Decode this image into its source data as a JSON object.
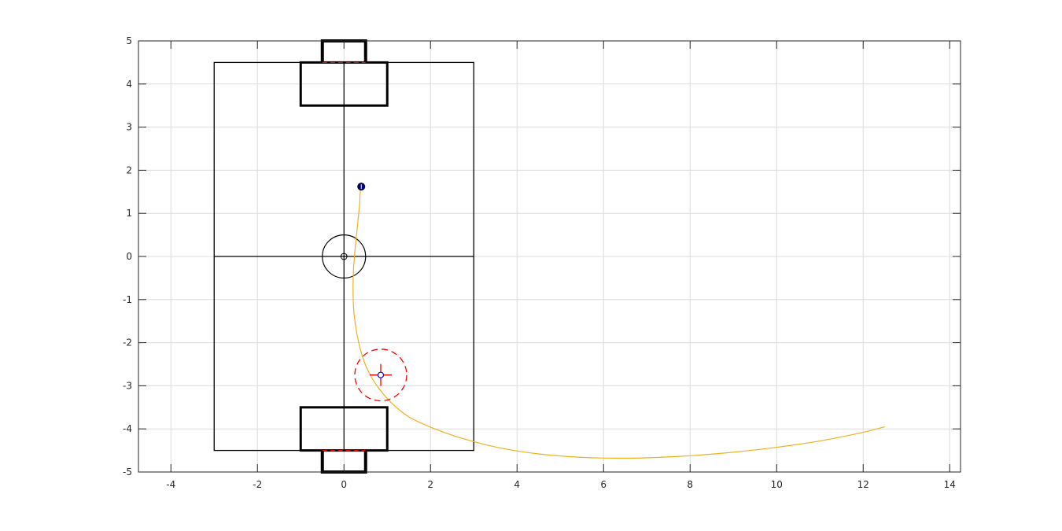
{
  "chart_data": {
    "type": "line",
    "title": "",
    "xlabel": "",
    "ylabel": "",
    "xlim": [
      -4.75,
      14.25
    ],
    "ylim": [
      -5,
      5
    ],
    "xticks": [
      -4,
      -2,
      0,
      2,
      4,
      6,
      8,
      10,
      12,
      14
    ],
    "yticks": [
      -5,
      -4,
      -3,
      -2,
      -1,
      0,
      1,
      2,
      3,
      4,
      5
    ],
    "grid": true,
    "legend": "none",
    "field": {
      "outline": {
        "x": [
          -3,
          3
        ],
        "y": [
          -4.5,
          4.5
        ]
      },
      "center_line": {
        "y": 0
      },
      "center_circle": {
        "cx": 0,
        "cy": 0,
        "r": 0.5
      },
      "center_spot": {
        "cx": 0,
        "cy": 0,
        "r": 0.07
      },
      "goal_areas": [
        {
          "x": [
            -1,
            1
          ],
          "y": [
            3.5,
            4.5
          ]
        },
        {
          "x": [
            -1,
            1
          ],
          "y": [
            -4.5,
            -3.5
          ]
        }
      ],
      "goals": [
        {
          "x": [
            -0.5,
            0.5
          ],
          "y": [
            4.5,
            5.0
          ]
        },
        {
          "x": [
            -0.5,
            0.5
          ],
          "y": [
            -5.0,
            -4.5
          ]
        }
      ]
    },
    "series": [
      {
        "x": [
          0.38,
          0.36,
          0.31,
          0.26,
          0.22,
          0.21,
          0.23,
          0.3,
          0.42,
          0.58,
          0.8,
          1.1,
          1.5,
          2.1,
          2.8,
          3.6,
          4.5,
          5.5,
          6.6,
          7.7,
          8.8,
          9.9,
          11.0,
          12.0,
          12.5
        ],
        "y": [
          1.6,
          1.2,
          0.7,
          0.2,
          -0.3,
          -0.8,
          -1.3,
          -1.8,
          -2.3,
          -2.7,
          -3.05,
          -3.4,
          -3.72,
          -4.0,
          -4.24,
          -4.44,
          -4.58,
          -4.66,
          -4.68,
          -4.64,
          -4.56,
          -4.44,
          -4.28,
          -4.08,
          -3.95
        ]
      }
    ],
    "markers": {
      "ball": {
        "x": 0.4,
        "y": 1.62
      },
      "target": {
        "x": 0.85,
        "y": -2.75,
        "radius": 0.6
      }
    },
    "colors": {
      "path": "#EDB120",
      "field": "#000000",
      "goal_line": "#ff0000",
      "target_circle": "#ff0000",
      "target_point": "#0000ff",
      "ball": "#000080",
      "grid": "#dcdcdc",
      "axis": "#262626"
    }
  }
}
